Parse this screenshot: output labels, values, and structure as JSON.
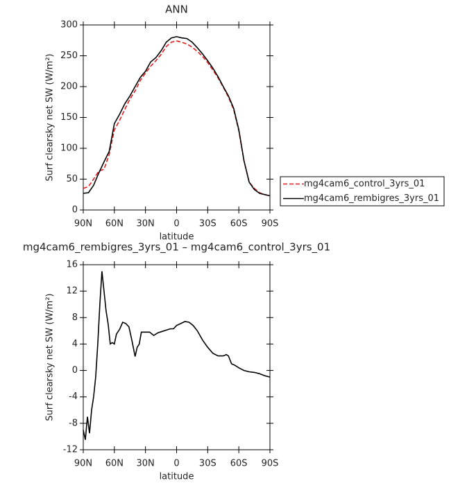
{
  "chart_data": [
    {
      "type": "line",
      "title": "ANN",
      "xlabel": "latitude",
      "ylabel": "Surf clearsky net SW (W/m²)",
      "x": [
        90,
        85,
        80,
        75,
        70,
        65,
        60,
        55,
        50,
        45,
        40,
        35,
        30,
        25,
        20,
        15,
        10,
        5,
        0,
        -5,
        -10,
        -15,
        -20,
        -25,
        -30,
        -35,
        -40,
        -45,
        -50,
        -55,
        -60,
        -65,
        -70,
        -75,
        -80,
        -85,
        -90
      ],
      "series": [
        {
          "name": "mg4cam6_control_3yrs_01",
          "color": "#e41a1c",
          "style": "dashed",
          "values": [
            35,
            38,
            50,
            63,
            66,
            90,
            130,
            145,
            163,
            180,
            193,
            210,
            222,
            233,
            242,
            252,
            265,
            272,
            274,
            272,
            269,
            264,
            257,
            249,
            239,
            227,
            214,
            199,
            183,
            163,
            128,
            80,
            45,
            35,
            28,
            25,
            23
          ]
        },
        {
          "name": "mg4cam6_rembigres_3yrs_01",
          "color": "#000000",
          "style": "solid",
          "values": [
            27,
            28,
            40,
            60,
            78,
            95,
            140,
            155,
            172,
            185,
            200,
            215,
            225,
            240,
            247,
            258,
            272,
            279,
            281,
            279,
            278,
            272,
            263,
            253,
            242,
            230,
            216,
            200,
            185,
            165,
            130,
            80,
            45,
            33,
            27,
            25,
            23
          ]
        }
      ],
      "xlim": [
        90,
        -90
      ],
      "xticks": [
        {
          "value": 90,
          "label": "90N"
        },
        {
          "value": 60,
          "label": "60N"
        },
        {
          "value": 30,
          "label": "30N"
        },
        0,
        {
          "value": -30,
          "label": "30S"
        },
        {
          "value": -60,
          "label": "60S"
        },
        {
          "value": -90,
          "label": "90S"
        }
      ],
      "ylim": [
        0,
        300
      ],
      "yticks": [
        0,
        50,
        100,
        150,
        200,
        250,
        300
      ],
      "legend": "right"
    },
    {
      "type": "line",
      "title": "mg4cam6_rembigres_3yrs_01 – mg4cam6_control_3yrs_01",
      "xlabel": "latitude",
      "ylabel": "Surf clearsky net SW (W/m²)",
      "x": [
        90,
        88,
        86,
        84,
        82,
        80,
        78,
        76,
        74,
        72,
        70,
        68,
        66,
        64,
        62,
        60,
        58,
        55,
        52,
        49,
        46,
        43,
        40,
        38,
        36,
        34,
        30,
        26,
        22,
        18,
        14,
        10,
        6,
        3,
        0,
        -4,
        -8,
        -12,
        -16,
        -20,
        -25,
        -30,
        -35,
        -40,
        -45,
        -48,
        -50,
        -53,
        -56,
        -60,
        -65,
        -70,
        -75,
        -80,
        -85,
        -90
      ],
      "series": [
        {
          "color": "#000000",
          "style": "solid",
          "values": [
            -9,
            -10.5,
            -7,
            -9.5,
            -6,
            -4,
            -1,
            4,
            10,
            15,
            12,
            9,
            7,
            4,
            4.2,
            4,
            5.5,
            6.2,
            7.3,
            7.1,
            6.6,
            4.5,
            2.1,
            3.5,
            4,
            5.8,
            5.8,
            5.8,
            5.3,
            5.7,
            5.9,
            6.1,
            6.3,
            6.3,
            6.8,
            7.1,
            7.4,
            7.3,
            6.8,
            6,
            4.6,
            3.5,
            2.6,
            2.2,
            2.2,
            2.4,
            2.2,
            1,
            0.8,
            0.4,
            0,
            -0.2,
            -0.3,
            -0.5,
            -0.8,
            -1
          ]
        }
      ],
      "xlim": [
        90,
        -90
      ],
      "xticks": [
        {
          "value": 90,
          "label": "90N"
        },
        {
          "value": 60,
          "label": "60N"
        },
        {
          "value": 30,
          "label": "30N"
        },
        0,
        {
          "value": -30,
          "label": "30S"
        },
        {
          "value": -60,
          "label": "60S"
        },
        {
          "value": -90,
          "label": "90S"
        }
      ],
      "ylim": [
        -12,
        16
      ],
      "yticks": [
        -12,
        -8,
        -4,
        0,
        4,
        8,
        12,
        16
      ]
    }
  ]
}
